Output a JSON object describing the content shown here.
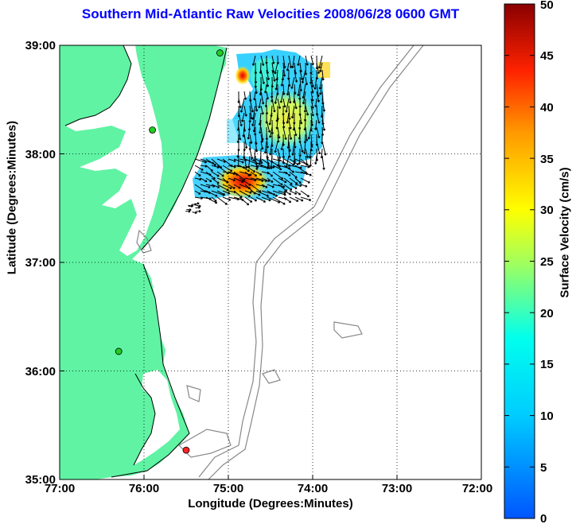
{
  "map": {
    "title": "Southern Mid-Atlantic Raw Velocities 2008/06/28 0600 GMT",
    "xlabel": "Longitude (Degrees:Minutes)",
    "ylabel": "Latitude (Degrees:Minutes)",
    "x_ticks": [
      "77:00",
      "76:00",
      "75:00",
      "74:00",
      "73:00",
      "72:00"
    ],
    "y_ticks": [
      "39:00",
      "38:00",
      "37:00",
      "36:00",
      "35:00"
    ],
    "lon_range": [
      -77,
      -72
    ],
    "lat_range": [
      35,
      39
    ],
    "grid": "dotted",
    "colors": {
      "land": "#5ff3a3",
      "bathymetry": "#888888",
      "title": "#0000ff"
    }
  },
  "colorbar": {
    "label": "Surface Velocity (cm/s)",
    "ticks": [
      "0",
      "5",
      "10",
      "15",
      "20",
      "25",
      "30",
      "35",
      "40",
      "45",
      "50"
    ],
    "range": [
      0,
      50
    ]
  },
  "stations": [
    {
      "lon": -75.1,
      "lat": 38.93,
      "color": "#22cc22"
    },
    {
      "lon": -75.9,
      "lat": 38.22,
      "color": "#22cc22"
    },
    {
      "lon": -76.3,
      "lat": 36.18,
      "color": "#22cc22"
    },
    {
      "lon": -75.5,
      "lat": 35.27,
      "color": "#ff2222"
    }
  ]
}
